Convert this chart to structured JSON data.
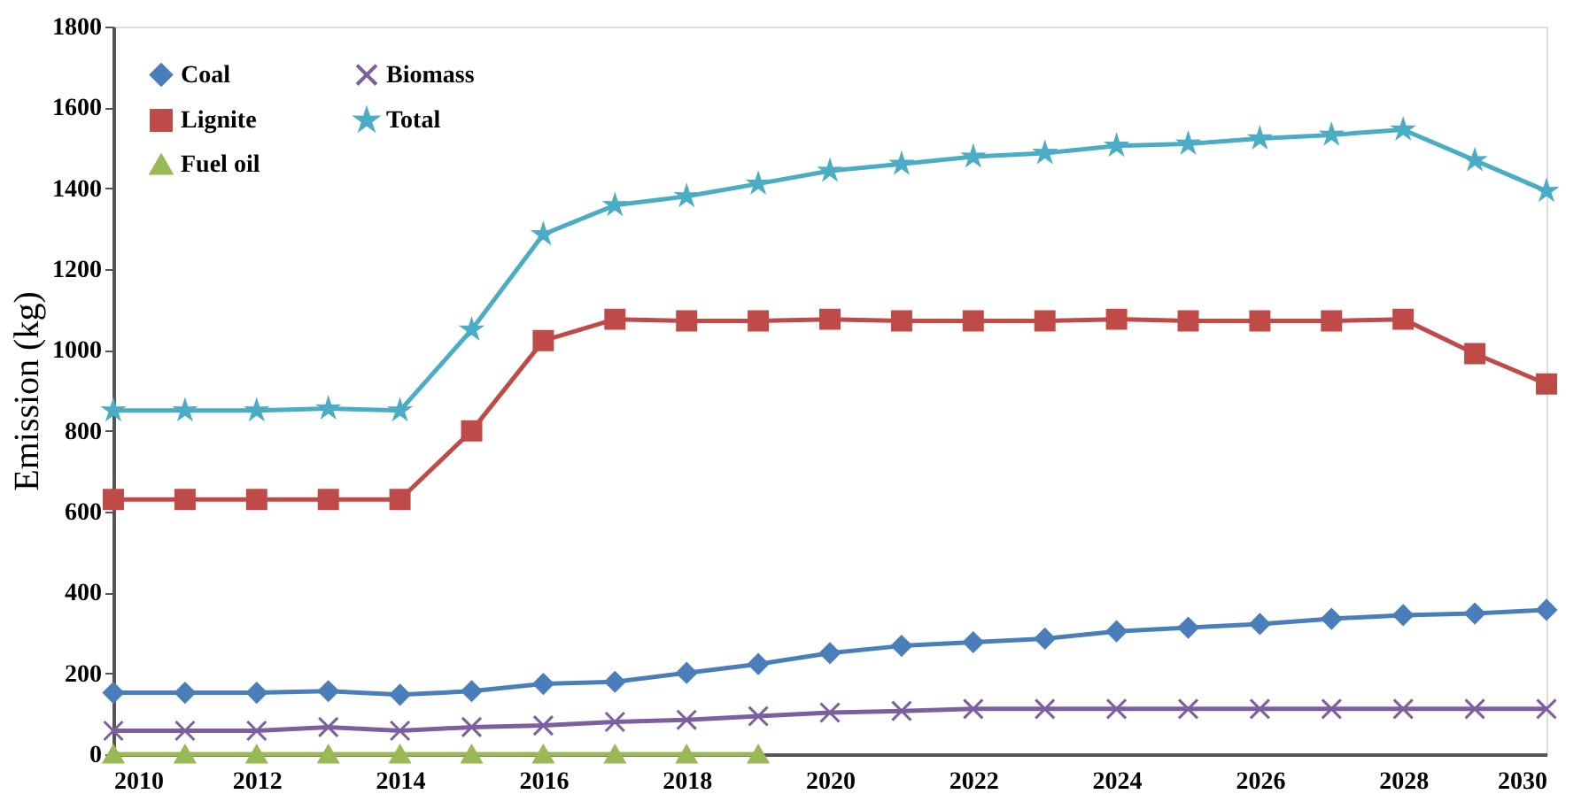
{
  "chart_data": {
    "type": "line",
    "ylabel": "Emission (kg)",
    "x": [
      2010,
      2011,
      2012,
      2013,
      2014,
      2015,
      2016,
      2017,
      2018,
      2019,
      2020,
      2021,
      2022,
      2023,
      2024,
      2025,
      2026,
      2027,
      2028,
      2029,
      2030
    ],
    "series": [
      {
        "name": "Coal",
        "color": "#4a7ebb",
        "marker": "diamond",
        "values": [
          152,
          152,
          152,
          156,
          147,
          156,
          174,
          179,
          201,
          223,
          250,
          268,
          277,
          286,
          304,
          313,
          322,
          335,
          344,
          348,
          357
        ]
      },
      {
        "name": "Lignite",
        "color": "#be4b48",
        "marker": "square",
        "values": [
          630,
          630,
          630,
          630,
          630,
          800,
          1023,
          1076,
          1072,
          1072,
          1076,
          1072,
          1072,
          1072,
          1076,
          1072,
          1072,
          1072,
          1076,
          991,
          916
        ]
      },
      {
        "name": "Fuel oil",
        "color": "#98b954",
        "marker": "triangle",
        "values": [
          0,
          0,
          0,
          0,
          0,
          0,
          0,
          0,
          0,
          0,
          null,
          null,
          null,
          null,
          null,
          null,
          null,
          null,
          null,
          null,
          null
        ]
      },
      {
        "name": "Biomass",
        "color": "#7d5fa0",
        "marker": "cross",
        "values": [
          58,
          58,
          58,
          67,
          58,
          67,
          71,
          80,
          85,
          94,
          103,
          107,
          112,
          112,
          112,
          112,
          112,
          112,
          112,
          112,
          112
        ]
      },
      {
        "name": "Total",
        "color": "#4bacc6",
        "marker": "star",
        "values": [
          850,
          850,
          850,
          855,
          850,
          1050,
          1286,
          1358,
          1380,
          1411,
          1443,
          1460,
          1478,
          1487,
          1505,
          1510,
          1523,
          1532,
          1545,
          1469,
          1393
        ]
      }
    ],
    "xlim": [
      2010,
      2030
    ],
    "xticks": [
      2010,
      2012,
      2014,
      2016,
      2018,
      2020,
      2022,
      2024,
      2026,
      2028,
      2030
    ],
    "ylim": [
      0,
      1800
    ],
    "yticks": [
      0,
      200,
      400,
      600,
      800,
      1000,
      1200,
      1400,
      1600,
      1800
    ],
    "grid": false,
    "legend": "top left",
    "line_style": "solid"
  }
}
